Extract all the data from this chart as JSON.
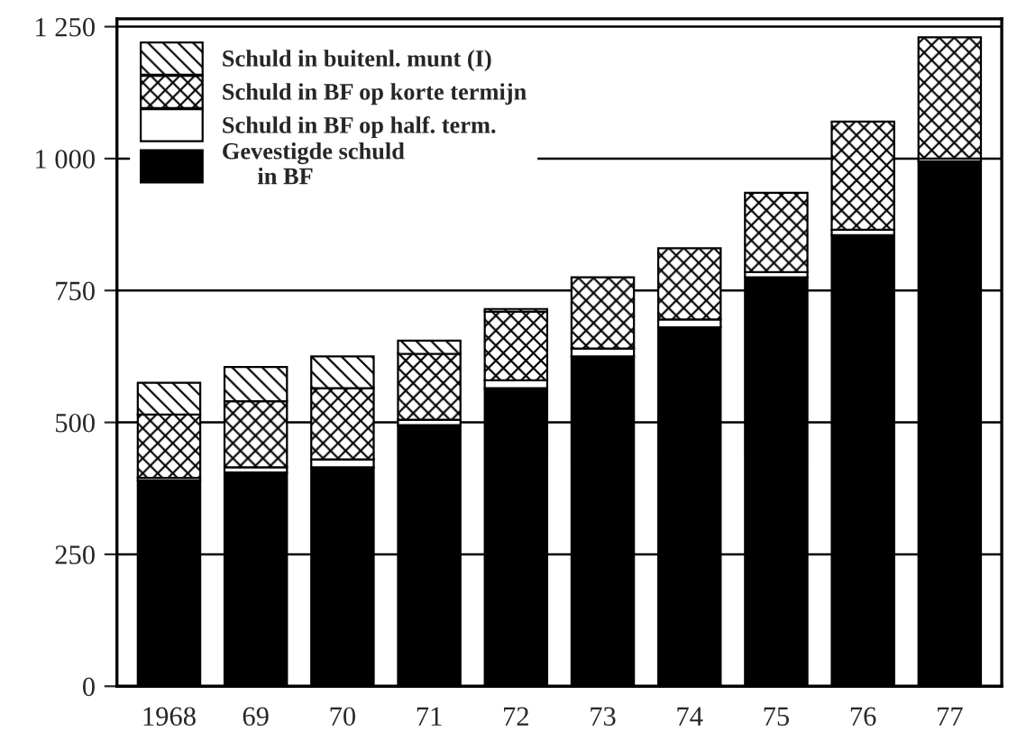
{
  "chart_data": {
    "type": "bar",
    "stacked": true,
    "categories": [
      "1968",
      "69",
      "70",
      "71",
      "72",
      "73",
      "74",
      "75",
      "76",
      "77"
    ],
    "series": [
      {
        "name": "Gevestigde schuld\n      in BF",
        "color": "#000000",
        "values": [
          390,
          405,
          415,
          495,
          565,
          625,
          680,
          775,
          855,
          995
        ]
      },
      {
        "name": "Schuld in BF op half. term.",
        "color": "#ffffff",
        "values": [
          5,
          10,
          15,
          10,
          15,
          15,
          15,
          10,
          10,
          5
        ]
      },
      {
        "name": "Schuld in BF op korte termijn",
        "color": "#000000",
        "values": [
          120,
          125,
          135,
          125,
          130,
          135,
          135,
          150,
          205,
          230
        ]
      },
      {
        "name": "Schuld in buitenl. munt (I)",
        "color": "#000000",
        "values": [
          60,
          65,
          60,
          25,
          5,
          null,
          null,
          null,
          null,
          null
        ]
      }
    ],
    "ylim": [
      0,
      1265
    ],
    "yticks": [
      0,
      250,
      500,
      750,
      {
        "value": 1000,
        "label": "1 000"
      },
      {
        "value": 1250,
        "label": "1 250"
      }
    ],
    "grid": "y",
    "legend": "top left"
  }
}
